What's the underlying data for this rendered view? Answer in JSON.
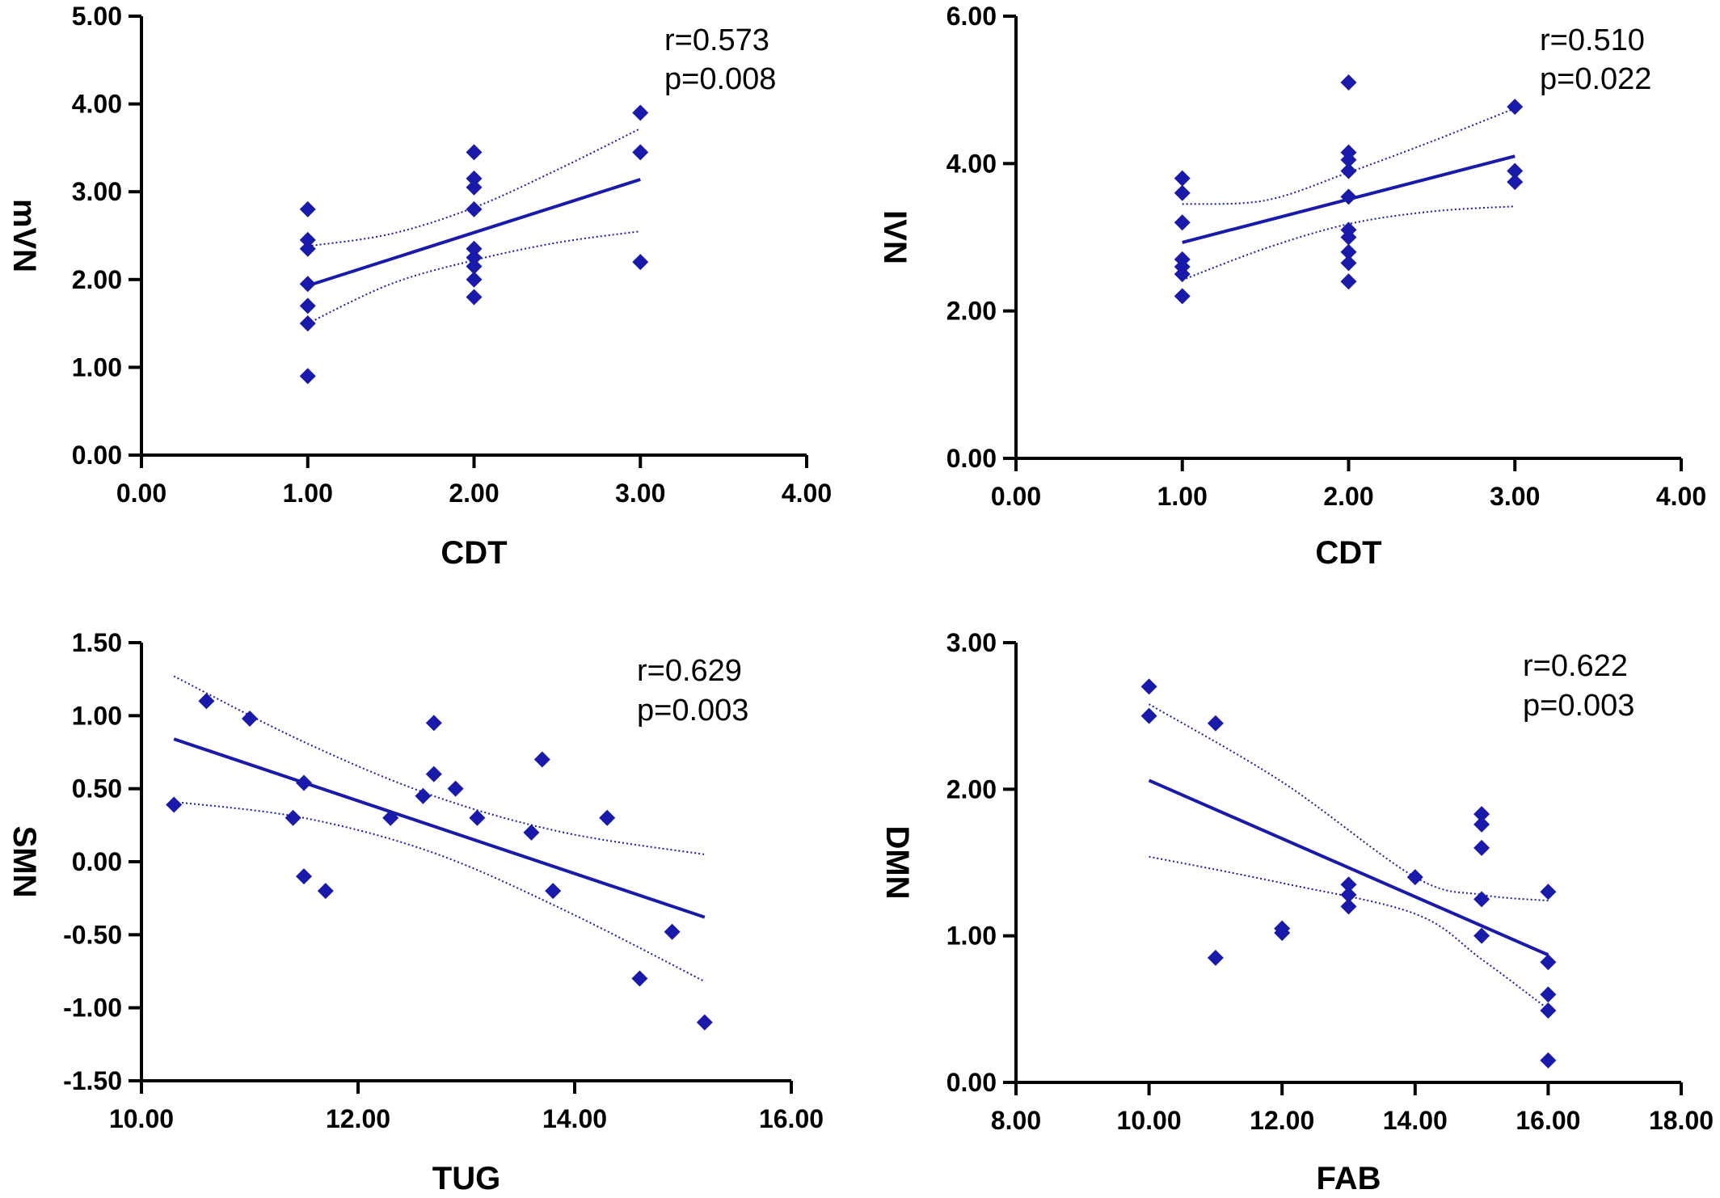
{
  "colors": {
    "marker": "#1a1aaa",
    "fit_line": "#1a1aaa",
    "axis": "#000000"
  },
  "chart_data": [
    {
      "type": "scatter",
      "xlabel": "CDT",
      "ylabel": "mVN",
      "xlim": [
        0,
        4
      ],
      "ylim": [
        0,
        5
      ],
      "xticks": [
        "0.00",
        "1.00",
        "2.00",
        "3.00",
        "4.00"
      ],
      "yticks": [
        "0.00",
        "1.00",
        "2.00",
        "3.00",
        "4.00",
        "5.00"
      ],
      "annotations": [
        "r=0.573",
        "p=0.008"
      ],
      "points": [
        [
          1,
          2.8
        ],
        [
          1,
          2.45
        ],
        [
          1,
          2.35
        ],
        [
          1,
          1.95
        ],
        [
          1,
          1.7
        ],
        [
          1,
          1.5
        ],
        [
          1,
          0.9
        ],
        [
          2,
          3.45
        ],
        [
          2,
          3.15
        ],
        [
          2,
          3.05
        ],
        [
          2,
          2.8
        ],
        [
          2,
          2.35
        ],
        [
          2,
          2.25
        ],
        [
          2,
          2.15
        ],
        [
          2,
          2.0
        ],
        [
          2,
          1.8
        ],
        [
          3,
          3.9
        ],
        [
          3,
          3.45
        ],
        [
          3,
          2.2
        ]
      ],
      "fit_line": [
        [
          1,
          1.93
        ],
        [
          3,
          3.14
        ]
      ],
      "ci_upper": [
        [
          1,
          2.38
        ],
        [
          1.5,
          2.52
        ],
        [
          2,
          2.82
        ],
        [
          2.5,
          3.25
        ],
        [
          3,
          3.72
        ]
      ],
      "ci_lower": [
        [
          1,
          1.5
        ],
        [
          1.5,
          1.95
        ],
        [
          2,
          2.22
        ],
        [
          2.5,
          2.42
        ],
        [
          3,
          2.55
        ]
      ]
    },
    {
      "type": "scatter",
      "xlabel": "CDT",
      "ylabel": "IVN",
      "xlim": [
        0,
        4
      ],
      "ylim": [
        0,
        6
      ],
      "xticks": [
        "0.00",
        "1.00",
        "2.00",
        "3.00",
        "4.00"
      ],
      "yticks": [
        "0.00",
        "2.00",
        "4.00",
        "6.00"
      ],
      "annotations": [
        "r=0.510",
        "p=0.022"
      ],
      "points": [
        [
          1,
          3.8
        ],
        [
          1,
          3.6
        ],
        [
          1,
          3.2
        ],
        [
          1,
          2.7
        ],
        [
          1,
          2.6
        ],
        [
          1,
          2.5
        ],
        [
          1,
          2.2
        ],
        [
          2,
          5.1
        ],
        [
          2,
          4.15
        ],
        [
          2,
          4.05
        ],
        [
          2,
          3.9
        ],
        [
          2,
          3.55
        ],
        [
          2,
          3.1
        ],
        [
          2,
          3.0
        ],
        [
          2,
          2.8
        ],
        [
          2,
          2.65
        ],
        [
          2,
          2.4
        ],
        [
          3,
          4.77
        ],
        [
          3,
          3.9
        ],
        [
          3,
          3.75
        ]
      ],
      "fit_line": [
        [
          1,
          2.93
        ],
        [
          3,
          4.1
        ]
      ],
      "ci_upper": [
        [
          1,
          3.45
        ],
        [
          1.5,
          3.5
        ],
        [
          2,
          3.88
        ],
        [
          2.5,
          4.3
        ],
        [
          3,
          4.75
        ]
      ],
      "ci_lower": [
        [
          1,
          2.42
        ],
        [
          1.5,
          2.85
        ],
        [
          2,
          3.18
        ],
        [
          2.5,
          3.35
        ],
        [
          3,
          3.42
        ]
      ]
    },
    {
      "type": "scatter",
      "xlabel": "TUG",
      "ylabel": "SMN",
      "xlim": [
        10,
        16
      ],
      "ylim": [
        -1.5,
        1.5
      ],
      "xticks": [
        "10.00",
        "12.00",
        "14.00",
        "16.00"
      ],
      "yticks": [
        "-1.50",
        "-1.00",
        "-0.50",
        "0.00",
        "0.50",
        "1.00",
        "1.50"
      ],
      "annotations": [
        "r=0.629",
        "p=0.003"
      ],
      "points": [
        [
          10.3,
          0.39
        ],
        [
          10.6,
          1.1
        ],
        [
          11.0,
          0.98
        ],
        [
          11.4,
          0.3
        ],
        [
          11.5,
          0.54
        ],
        [
          11.5,
          -0.1
        ],
        [
          11.7,
          -0.2
        ],
        [
          12.3,
          0.3
        ],
        [
          12.6,
          0.45
        ],
        [
          12.7,
          0.95
        ],
        [
          12.7,
          0.6
        ],
        [
          12.9,
          0.5
        ],
        [
          13.1,
          0.3
        ],
        [
          13.6,
          0.2
        ],
        [
          13.7,
          0.7
        ],
        [
          13.8,
          -0.2
        ],
        [
          14.3,
          0.3
        ],
        [
          14.6,
          -0.8
        ],
        [
          14.9,
          -0.48
        ],
        [
          15.2,
          -1.1
        ]
      ],
      "fit_line": [
        [
          10.3,
          0.84
        ],
        [
          15.2,
          -0.38
        ]
      ],
      "ci_upper": [
        [
          10.3,
          1.27
        ],
        [
          11.5,
          0.82
        ],
        [
          12.7,
          0.45
        ],
        [
          13.9,
          0.2
        ],
        [
          15.2,
          0.05
        ]
      ],
      "ci_lower": [
        [
          10.3,
          0.41
        ],
        [
          11.5,
          0.3
        ],
        [
          12.7,
          0.06
        ],
        [
          13.9,
          -0.33
        ],
        [
          15.2,
          -0.82
        ]
      ]
    },
    {
      "type": "scatter",
      "xlabel": "FAB",
      "ylabel": "DMN",
      "xlim": [
        8,
        18
      ],
      "ylim": [
        0,
        3
      ],
      "xticks": [
        "8.00",
        "10.00",
        "12.00",
        "14.00",
        "16.00",
        "18.00"
      ],
      "yticks": [
        "0.00",
        "1.00",
        "2.00",
        "3.00"
      ],
      "annotations": [
        "r=0.622",
        "p=0.003"
      ],
      "points": [
        [
          10,
          2.7
        ],
        [
          10,
          2.5
        ],
        [
          11,
          2.45
        ],
        [
          11,
          0.85
        ],
        [
          12,
          1.05
        ],
        [
          12,
          1.02
        ],
        [
          13,
          1.35
        ],
        [
          13,
          1.28
        ],
        [
          13,
          1.2
        ],
        [
          14,
          1.4
        ],
        [
          15,
          1.83
        ],
        [
          15,
          1.76
        ],
        [
          15,
          1.6
        ],
        [
          15,
          1.25
        ],
        [
          15,
          1.0
        ],
        [
          16,
          1.3
        ],
        [
          16,
          0.82
        ],
        [
          16,
          0.6
        ],
        [
          16,
          0.49
        ],
        [
          16,
          0.15
        ]
      ],
      "fit_line": [
        [
          10,
          2.06
        ],
        [
          16,
          0.87
        ]
      ],
      "ci_upper": [
        [
          10,
          2.58
        ],
        [
          12,
          2.05
        ],
        [
          14,
          1.4
        ],
        [
          15,
          1.28
        ],
        [
          16,
          1.24
        ]
      ],
      "ci_lower": [
        [
          10,
          1.54
        ],
        [
          12,
          1.36
        ],
        [
          14,
          1.15
        ],
        [
          15,
          0.84
        ],
        [
          16,
          0.5
        ]
      ]
    }
  ]
}
